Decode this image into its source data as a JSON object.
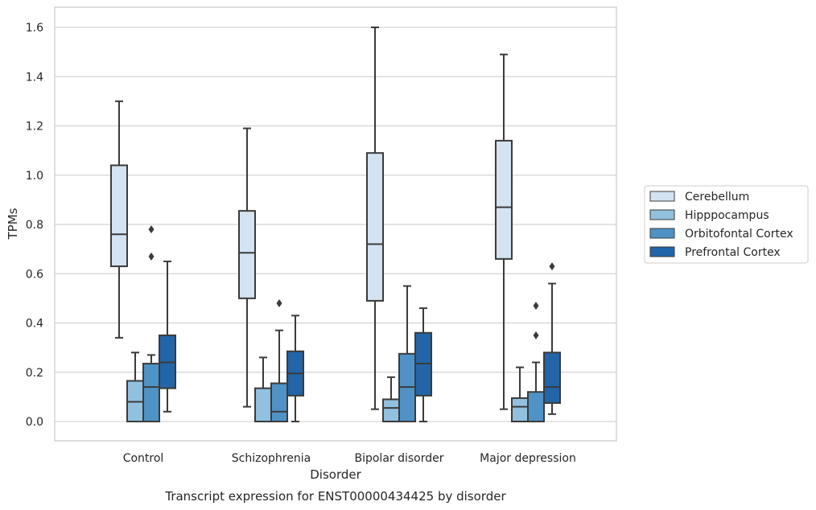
{
  "chart_data": {
    "type": "box",
    "title": "Transcript expression for ENST00000434425 by disorder",
    "xlabel": "Disorder",
    "ylabel": "TPMs",
    "ylim": [
      -0.08,
      1.68
    ],
    "yticks": [
      "0.0",
      "0.2",
      "0.4",
      "0.6",
      "0.8",
      "1.0",
      "1.2",
      "1.4",
      "1.6"
    ],
    "grid": true,
    "legend_position": "right",
    "categories": [
      "Control",
      "Schizophrenia",
      "Bipolar disorder",
      "Major depression"
    ],
    "series": [
      {
        "name": "Cerebellum",
        "color": "#d4e3f2",
        "boxes": [
          {
            "whisker_low": 0.34,
            "q1": 0.63,
            "median": 0.76,
            "q3": 1.04,
            "whisker_high": 1.3,
            "outliers": []
          },
          {
            "whisker_low": 0.06,
            "q1": 0.5,
            "median": 0.685,
            "q3": 0.855,
            "whisker_high": 1.19,
            "outliers": []
          },
          {
            "whisker_low": 0.05,
            "q1": 0.49,
            "median": 0.72,
            "q3": 1.09,
            "whisker_high": 1.6,
            "outliers": []
          },
          {
            "whisker_low": 0.05,
            "q1": 0.66,
            "median": 0.87,
            "q3": 1.14,
            "whisker_high": 1.49,
            "outliers": []
          }
        ]
      },
      {
        "name": "Hipppocampus",
        "color": "#92c0df",
        "boxes": [
          {
            "whisker_low": 0.0,
            "q1": 0.0,
            "median": 0.08,
            "q3": 0.165,
            "whisker_high": 0.28,
            "outliers": []
          },
          {
            "whisker_low": 0.0,
            "q1": 0.0,
            "median": 0.0,
            "q3": 0.135,
            "whisker_high": 0.26,
            "outliers": []
          },
          {
            "whisker_low": 0.0,
            "q1": 0.0,
            "median": 0.055,
            "q3": 0.09,
            "whisker_high": 0.18,
            "outliers": []
          },
          {
            "whisker_low": 0.0,
            "q1": 0.0,
            "median": 0.06,
            "q3": 0.095,
            "whisker_high": 0.22,
            "outliers": []
          }
        ]
      },
      {
        "name": "Orbitofontal Cortex",
        "color": "#4f93c6",
        "boxes": [
          {
            "whisker_low": 0.0,
            "q1": 0.0,
            "median": 0.14,
            "q3": 0.235,
            "whisker_high": 0.27,
            "outliers": [
              0.67,
              0.78
            ]
          },
          {
            "whisker_low": 0.0,
            "q1": 0.0,
            "median": 0.04,
            "q3": 0.155,
            "whisker_high": 0.37,
            "outliers": [
              0.48
            ]
          },
          {
            "whisker_low": 0.0,
            "q1": 0.0,
            "median": 0.14,
            "q3": 0.275,
            "whisker_high": 0.55,
            "outliers": []
          },
          {
            "whisker_low": 0.0,
            "q1": 0.0,
            "median": 0.0,
            "q3": 0.12,
            "whisker_high": 0.24,
            "outliers": [
              0.35,
              0.47
            ]
          }
        ]
      },
      {
        "name": "Prefrontal Cortex",
        "color": "#2265a8",
        "boxes": [
          {
            "whisker_low": 0.04,
            "q1": 0.135,
            "median": 0.24,
            "q3": 0.35,
            "whisker_high": 0.65,
            "outliers": []
          },
          {
            "whisker_low": 0.0,
            "q1": 0.105,
            "median": 0.195,
            "q3": 0.285,
            "whisker_high": 0.43,
            "outliers": []
          },
          {
            "whisker_low": 0.0,
            "q1": 0.105,
            "median": 0.235,
            "q3": 0.36,
            "whisker_high": 0.46,
            "outliers": []
          },
          {
            "whisker_low": 0.03,
            "q1": 0.075,
            "median": 0.14,
            "q3": 0.28,
            "whisker_high": 0.56,
            "outliers": [
              0.63
            ]
          }
        ]
      }
    ]
  }
}
